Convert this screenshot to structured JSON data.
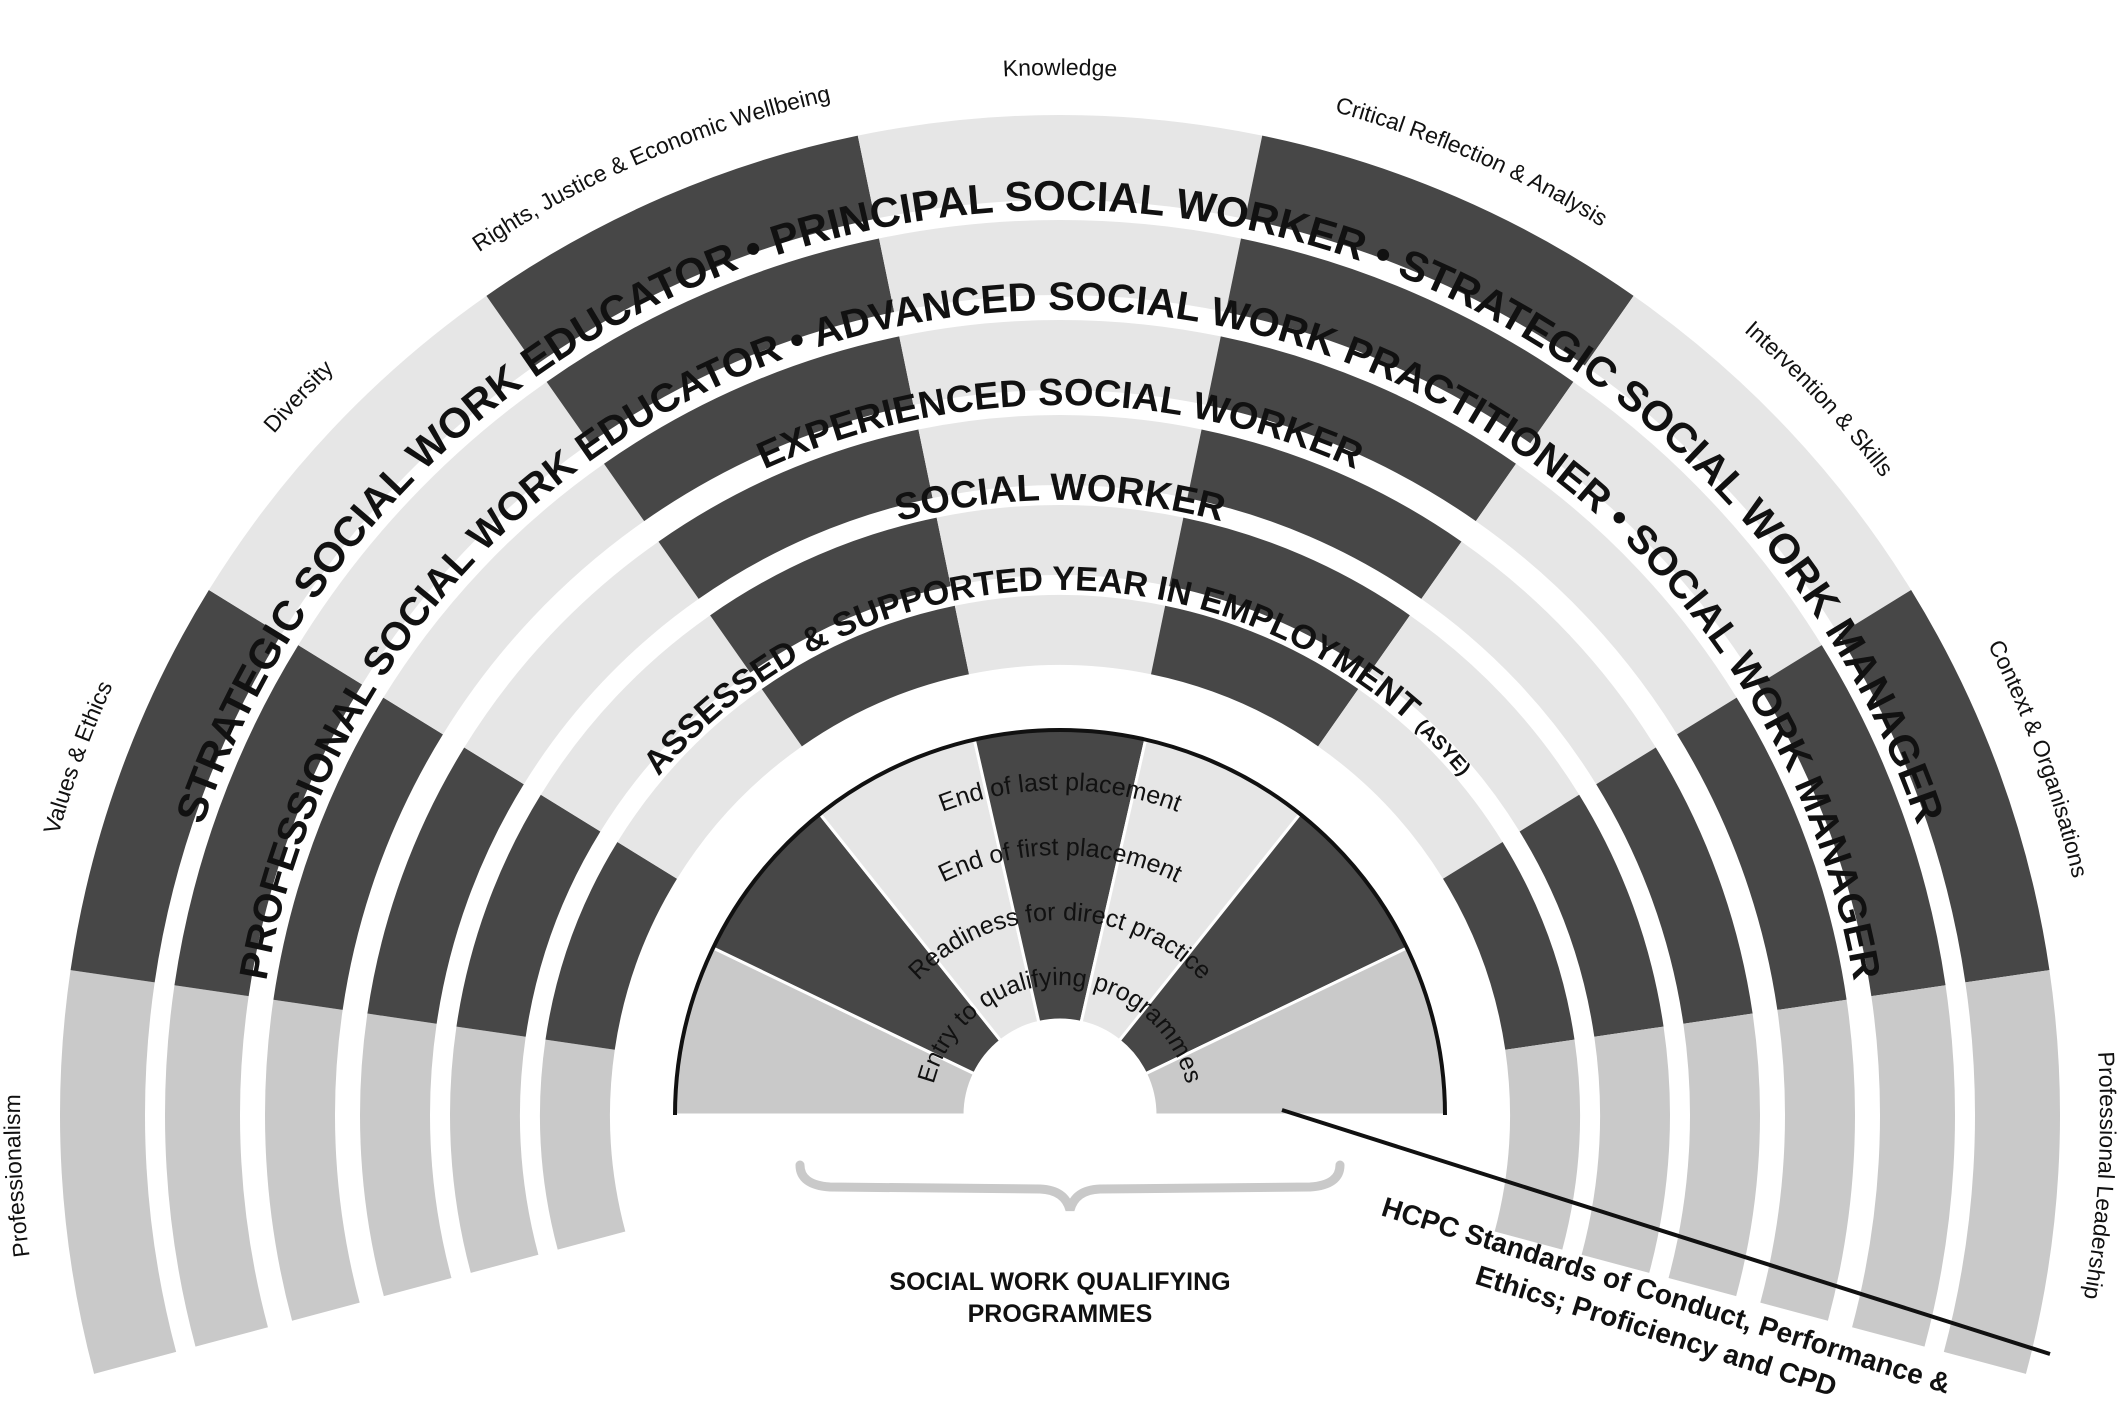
{
  "domains": [
    {
      "name": "Professionalism",
      "shade": "light"
    },
    {
      "name": "Values & Ethics",
      "shade": "dark"
    },
    {
      "name": "Diversity",
      "shade": "lighter"
    },
    {
      "name": "Rights, Justice & Economic Wellbeing",
      "shade": "dark"
    },
    {
      "name": "Knowledge",
      "shade": "lighter"
    },
    {
      "name": "Critical Reflection & Analysis",
      "shade": "dark"
    },
    {
      "name": "Intervention & Skills",
      "shade": "lighter"
    },
    {
      "name": "Context & Organisations",
      "shade": "dark"
    },
    {
      "name": "Professional  Leadership",
      "shade": "light"
    }
  ],
  "levels": [
    {
      "label": "ASSESSED & SUPPORTED YEAR IN EMPLOYMENT",
      "suffix": "(ASYE)"
    },
    {
      "label": "SOCIAL WORKER"
    },
    {
      "label": "EXPERIENCED SOCIAL WORKER"
    },
    {
      "label": "PROFESSIONAL SOCIAL WORK EDUCATOR  •  ADVANCED SOCIAL WORK PRACTITIONER  •  SOCIAL WORK MANAGER"
    },
    {
      "label": "STRATEGIC SOCIAL WORK EDUCATOR  •  PRINCIPAL SOCIAL WORKER  •  STRATEGIC SOCIAL WORK MANAGER"
    }
  ],
  "qualifying_stages": [
    "Entry to qualifying programmes",
    "Readiness for direct practice",
    "End of first placement",
    "End of last placement"
  ],
  "qualifying_caption": [
    "SOCIAL WORK QUALIFYING",
    "PROGRAMMES"
  ],
  "hcpc_caption": [
    "HCPC Standards of Conduct, Performance &",
    "Ethics; Proficiency and CPD"
  ],
  "colors": {
    "dark": "#474747",
    "light": "#c9c9c9",
    "lighter": "#e6e6e6",
    "gap": "#ffffff",
    "outline": "#111111"
  }
}
